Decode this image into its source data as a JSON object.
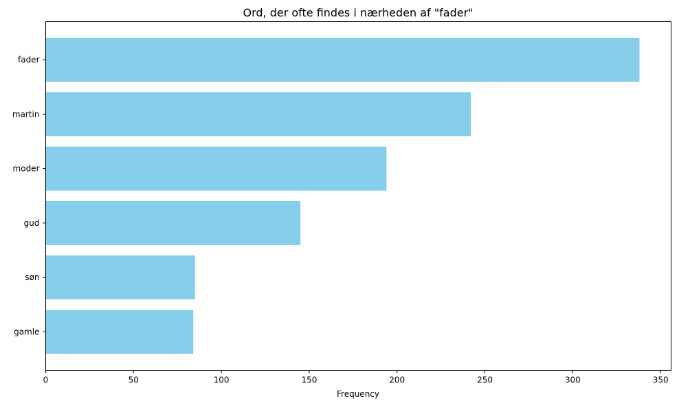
{
  "chart_data": {
    "type": "bar",
    "orientation": "horizontal",
    "title": "Ord, der ofte findes i nærheden af \"fader\"",
    "xlabel": "Frequency",
    "ylabel": "",
    "categories": [
      "fader",
      "martin",
      "moder",
      "gud",
      "søn",
      "gamle"
    ],
    "values": [
      338,
      242,
      194,
      145,
      85,
      84
    ],
    "xlim": [
      0,
      356
    ],
    "xticks": [
      0,
      50,
      100,
      150,
      200,
      250,
      300,
      350
    ],
    "grid": false,
    "legend": "none",
    "bar_color": "#87CEEB"
  }
}
